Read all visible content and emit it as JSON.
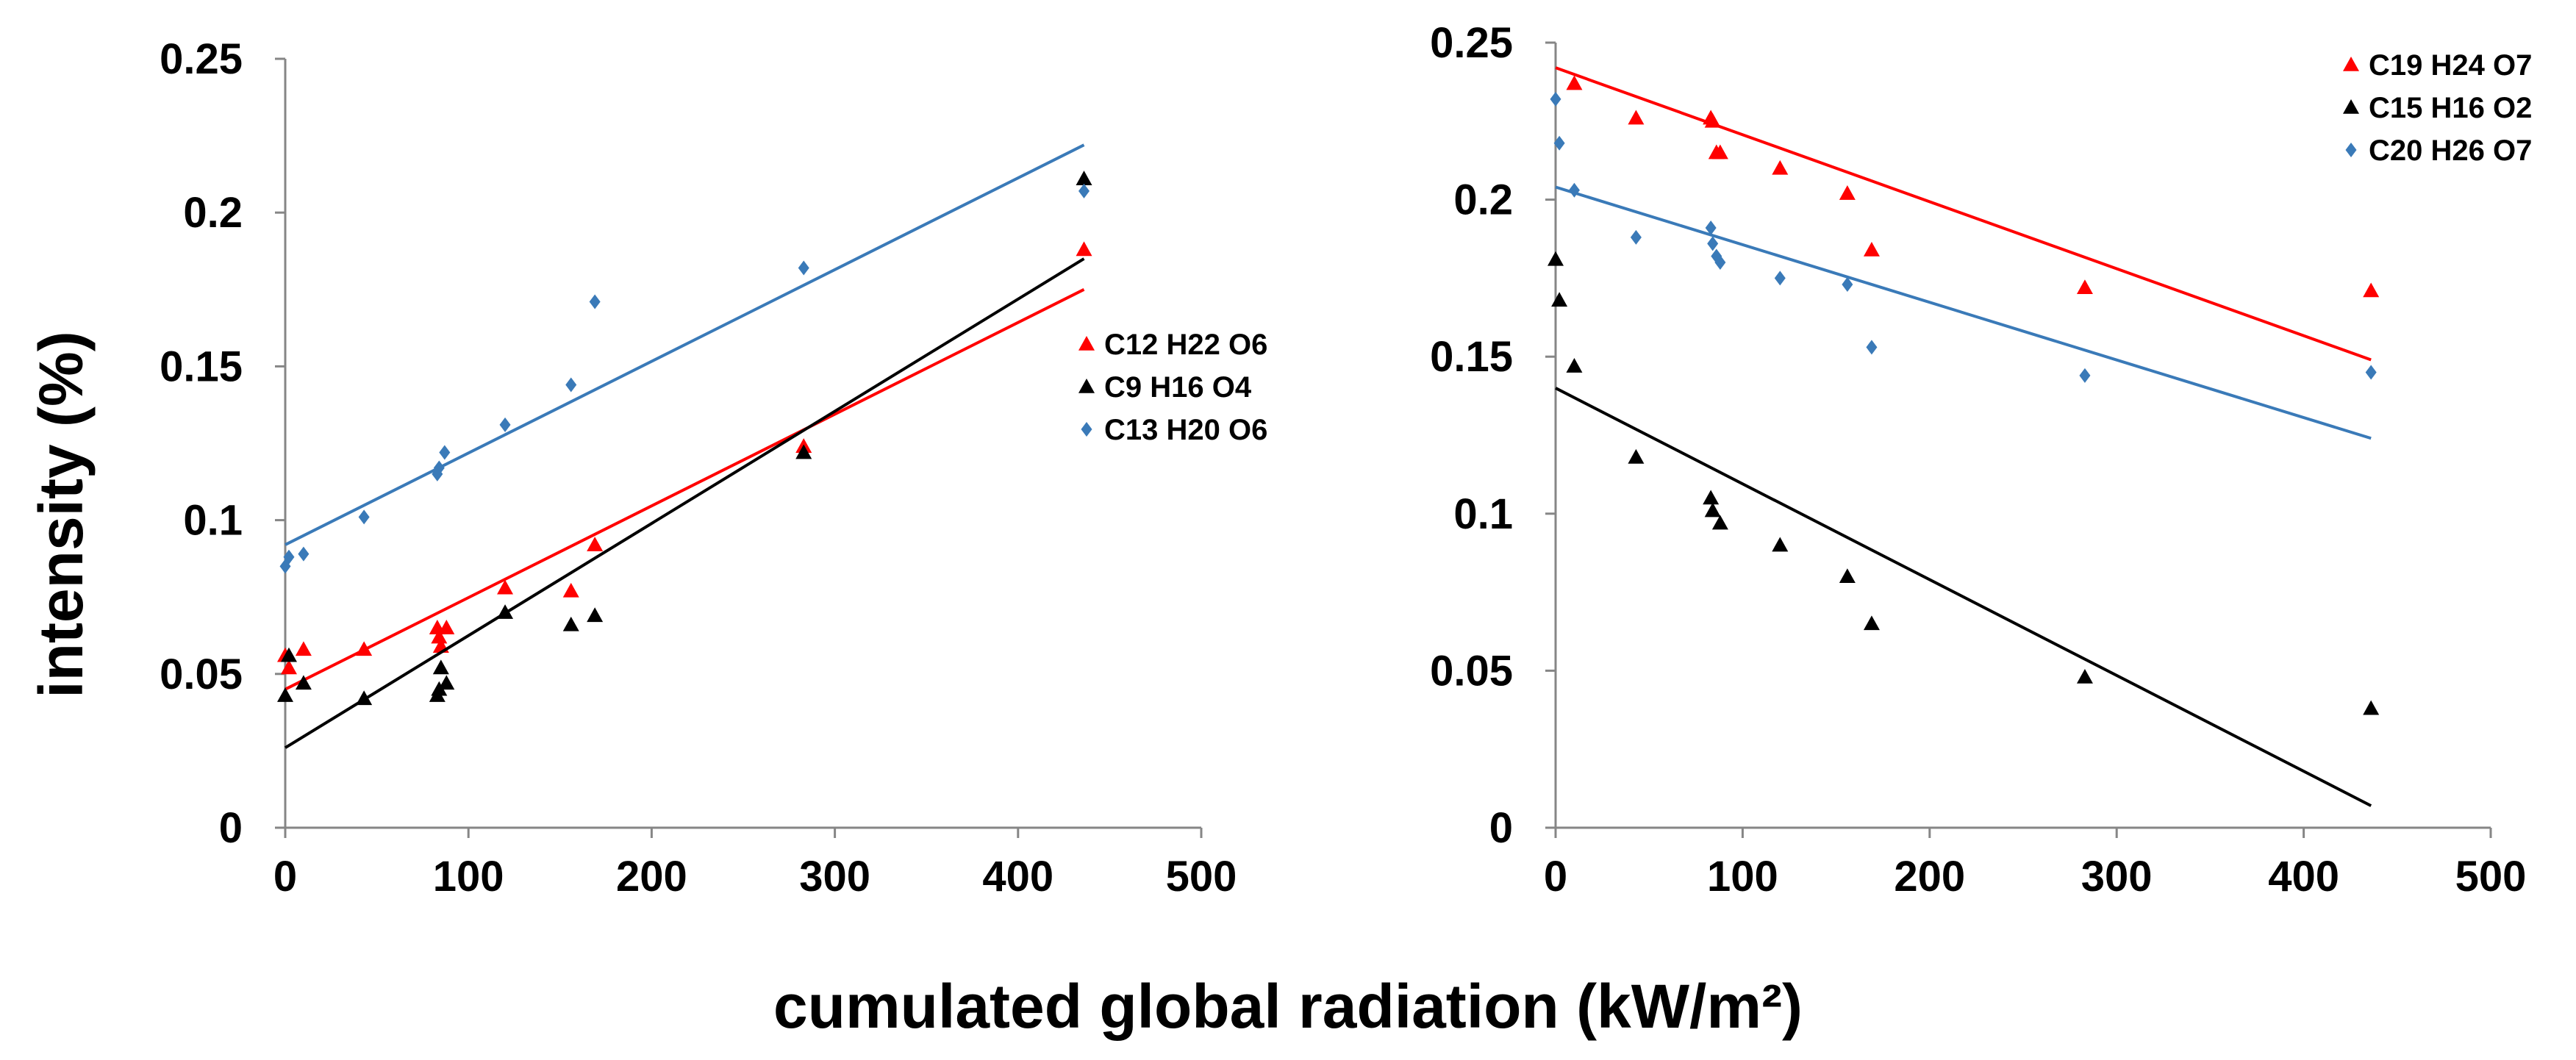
{
  "figure": {
    "ylabel": "intensity  (%)",
    "xlabel": "cumulated global radiation (kW/m²)"
  },
  "chart_data": [
    {
      "type": "scatter",
      "panel": "left",
      "xlim": [
        0,
        500
      ],
      "ylim": [
        0,
        0.25
      ],
      "x_ticks": [
        0,
        100,
        200,
        300,
        400,
        500
      ],
      "x_tick_labels": [
        "0",
        "100",
        "200",
        "300",
        "400",
        "500"
      ],
      "y_ticks": [
        0,
        0.05,
        0.1,
        0.15,
        0.2,
        0.25
      ],
      "y_tick_labels": [
        "0",
        "0.05",
        "0.1",
        "0.15",
        "0.2",
        "0.25"
      ],
      "legend_position": "right",
      "series": [
        {
          "name": "C12 H22 O6",
          "color": "#ff0000",
          "marker": "triangle",
          "points": [
            [
              0,
              0.056
            ],
            [
              2,
              0.052
            ],
            [
              10,
              0.058
            ],
            [
              43,
              0.058
            ],
            [
              83,
              0.065
            ],
            [
              84,
              0.062
            ],
            [
              85,
              0.059
            ],
            [
              88,
              0.065
            ],
            [
              120,
              0.078
            ],
            [
              156,
              0.077
            ],
            [
              169,
              0.092
            ],
            [
              283,
              0.124
            ],
            [
              436,
              0.188
            ]
          ],
          "trendline": [
            [
              0,
              0.045
            ],
            [
              436,
              0.175
            ]
          ]
        },
        {
          "name": "C9 H16 O4",
          "color": "#000000",
          "marker": "triangle",
          "points": [
            [
              0,
              0.043
            ],
            [
              2,
              0.056
            ],
            [
              10,
              0.047
            ],
            [
              43,
              0.042
            ],
            [
              83,
              0.043
            ],
            [
              84,
              0.045
            ],
            [
              85,
              0.052
            ],
            [
              88,
              0.047
            ],
            [
              120,
              0.07
            ],
            [
              156,
              0.066
            ],
            [
              169,
              0.069
            ],
            [
              283,
              0.122
            ],
            [
              436,
              0.211
            ]
          ],
          "trendline": [
            [
              0,
              0.026
            ],
            [
              436,
              0.185
            ]
          ]
        },
        {
          "name": "C13 H20 O6",
          "color": "#3a7ab8",
          "marker": "diamond",
          "points": [
            [
              0,
              0.085
            ],
            [
              2,
              0.088
            ],
            [
              10,
              0.089
            ],
            [
              43,
              0.101
            ],
            [
              83,
              0.115
            ],
            [
              84,
              0.117
            ],
            [
              87,
              0.122
            ],
            [
              120,
              0.131
            ],
            [
              156,
              0.144
            ],
            [
              169,
              0.171
            ],
            [
              283,
              0.182
            ],
            [
              436,
              0.207
            ]
          ],
          "trendline": [
            [
              0,
              0.092
            ],
            [
              436,
              0.222
            ]
          ]
        }
      ]
    },
    {
      "type": "scatter",
      "panel": "right",
      "xlim": [
        0,
        500
      ],
      "ylim": [
        0,
        0.25
      ],
      "x_ticks": [
        0,
        100,
        200,
        300,
        400,
        500
      ],
      "x_tick_labels": [
        "0",
        "100",
        "200",
        "300",
        "400",
        "500"
      ],
      "y_ticks": [
        0,
        0.05,
        0.1,
        0.15,
        0.2,
        0.25
      ],
      "y_tick_labels": [
        "0",
        "0.05",
        "0.1",
        "0.15",
        "0.2",
        "0.25"
      ],
      "legend_position": "top-right",
      "series": [
        {
          "name": "C19 H24 O7",
          "color": "#ff0000",
          "marker": "triangle",
          "points": [
            [
              10,
              0.237
            ],
            [
              43,
              0.226
            ],
            [
              83,
              0.226
            ],
            [
              84,
              0.225
            ],
            [
              86,
              0.215
            ],
            [
              88,
              0.215
            ],
            [
              120,
              0.21
            ],
            [
              156,
              0.202
            ],
            [
              169,
              0.184
            ],
            [
              283,
              0.172
            ],
            [
              436,
              0.171
            ]
          ],
          "trendline": [
            [
              0,
              0.242
            ],
            [
              436,
              0.149
            ]
          ]
        },
        {
          "name": "C15 H16 O2",
          "color": "#000000",
          "marker": "triangle",
          "points": [
            [
              0,
              0.181
            ],
            [
              2,
              0.168
            ],
            [
              10,
              0.147
            ],
            [
              43,
              0.118
            ],
            [
              83,
              0.105
            ],
            [
              84,
              0.101
            ],
            [
              88,
              0.097
            ],
            [
              120,
              0.09
            ],
            [
              156,
              0.08
            ],
            [
              169,
              0.065
            ],
            [
              283,
              0.048
            ],
            [
              436,
              0.038
            ]
          ],
          "trendline": [
            [
              0,
              0.14
            ],
            [
              436,
              0.007
            ]
          ]
        },
        {
          "name": "C20 H26 O7",
          "color": "#3a7ab8",
          "marker": "diamond",
          "points": [
            [
              0,
              0.232
            ],
            [
              2,
              0.218
            ],
            [
              10,
              0.203
            ],
            [
              43,
              0.188
            ],
            [
              83,
              0.191
            ],
            [
              84,
              0.186
            ],
            [
              86,
              0.182
            ],
            [
              88,
              0.18
            ],
            [
              120,
              0.175
            ],
            [
              156,
              0.173
            ],
            [
              169,
              0.153
            ],
            [
              283,
              0.144
            ],
            [
              436,
              0.145
            ]
          ],
          "trendline": [
            [
              0,
              0.204
            ],
            [
              436,
              0.124
            ]
          ]
        }
      ]
    }
  ]
}
